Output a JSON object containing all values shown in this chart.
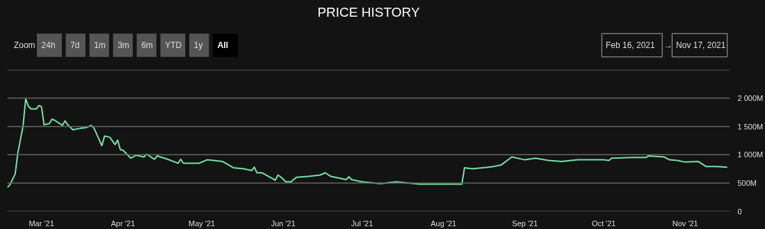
{
  "chart_data": {
    "type": "line",
    "title": "PRICE HISTORY",
    "x": [
      "2021-02-16",
      "2021-02-17",
      "2021-02-19",
      "2021-02-20",
      "2021-02-22",
      "2021-02-23",
      "2021-02-24",
      "2021-02-25",
      "2021-02-27",
      "2021-02-28",
      "2021-03-01",
      "2021-03-02",
      "2021-03-04",
      "2021-03-05",
      "2021-03-06",
      "2021-03-09",
      "2021-03-10",
      "2021-03-11",
      "2021-03-13",
      "2021-03-16",
      "2021-03-18",
      "2021-03-20",
      "2021-03-21",
      "2021-03-24",
      "2021-03-25",
      "2021-03-27",
      "2021-03-29",
      "2021-03-30",
      "2021-03-31",
      "2021-04-01",
      "2021-04-04",
      "2021-04-06",
      "2021-04-09",
      "2021-04-10",
      "2021-04-13",
      "2021-04-14",
      "2021-04-18",
      "2021-04-22",
      "2021-04-23",
      "2021-04-24",
      "2021-04-30",
      "2021-05-03",
      "2021-05-09",
      "2021-05-13",
      "2021-05-17",
      "2021-05-20",
      "2021-05-21",
      "2021-05-22",
      "2021-05-24",
      "2021-05-29",
      "2021-05-30",
      "2021-05-31",
      "2021-06-02",
      "2021-06-04",
      "2021-06-06",
      "2021-06-11",
      "2021-06-15",
      "2021-06-17",
      "2021-06-19",
      "2021-06-25",
      "2021-06-26",
      "2021-06-27",
      "2021-07-01",
      "2021-07-08",
      "2021-07-14",
      "2021-07-23",
      "2021-08-08",
      "2021-08-09",
      "2021-08-12",
      "2021-08-18",
      "2021-08-20",
      "2021-08-23",
      "2021-08-27",
      "2021-09-01",
      "2021-09-05",
      "2021-09-10",
      "2021-09-15",
      "2021-09-21",
      "2021-10-01",
      "2021-10-03",
      "2021-10-04",
      "2021-10-12",
      "2021-10-17",
      "2021-10-18",
      "2021-10-24",
      "2021-10-26",
      "2021-10-29",
      "2021-11-01",
      "2021-11-06",
      "2021-11-09",
      "2021-11-13",
      "2021-11-17"
    ],
    "series": [
      {
        "color": "#71e3a6",
        "values": [
          420,
          470,
          660,
          1030,
          1510,
          1990,
          1860,
          1810,
          1810,
          1870,
          1850,
          1530,
          1550,
          1630,
          1610,
          1520,
          1600,
          1530,
          1440,
          1470,
          1480,
          1520,
          1470,
          1160,
          1330,
          1310,
          1180,
          1260,
          1090,
          1080,
          940,
          990,
          960,
          1010,
          920,
          980,
          920,
          850,
          920,
          850,
          850,
          910,
          880,
          770,
          750,
          720,
          780,
          680,
          680,
          550,
          640,
          610,
          520,
          520,
          600,
          620,
          640,
          680,
          620,
          560,
          610,
          560,
          520,
          490,
          520,
          480,
          480,
          770,
          750,
          780,
          790,
          820,
          960,
          910,
          940,
          900,
          880,
          910,
          910,
          900,
          940,
          950,
          950,
          980,
          960,
          910,
          900,
          870,
          880,
          790,
          790,
          780
        ]
      }
    ],
    "xlim": [
      "2021-02-16",
      "2021-11-18"
    ],
    "xticks": [
      {
        "value": "2021-03-01",
        "label": "Mar '21"
      },
      {
        "value": "2021-04-01",
        "label": "Apr '21"
      },
      {
        "value": "2021-05-01",
        "label": "May '21"
      },
      {
        "value": "2021-06-01",
        "label": "Jun '21"
      },
      {
        "value": "2021-07-01",
        "label": "Jul '21"
      },
      {
        "value": "2021-08-01",
        "label": "Aug '21"
      },
      {
        "value": "2021-09-01",
        "label": "Sep '21"
      },
      {
        "value": "2021-10-01",
        "label": "Oct '21"
      },
      {
        "value": "2021-11-01",
        "label": "Nov '21"
      }
    ],
    "ylim": [
      0,
      2500
    ],
    "yticks": [
      0,
      {
        "value": 500,
        "label": "500M"
      },
      {
        "value": 1000,
        "label": "1 000M"
      },
      {
        "value": 1500,
        "label": "1 500M"
      },
      {
        "value": 2000,
        "label": "2 000M"
      },
      {
        "value": 2500,
        "label": null
      }
    ],
    "grid": "y",
    "marker": "none",
    "line_style": "solid",
    "annotations": [
      "Zoom",
      "24h",
      "7d",
      "1m",
      "3m",
      "6m",
      "YTD",
      "1y",
      "All",
      "Feb 16, 2021",
      "→",
      "Nov 17, 2021"
    ]
  }
}
